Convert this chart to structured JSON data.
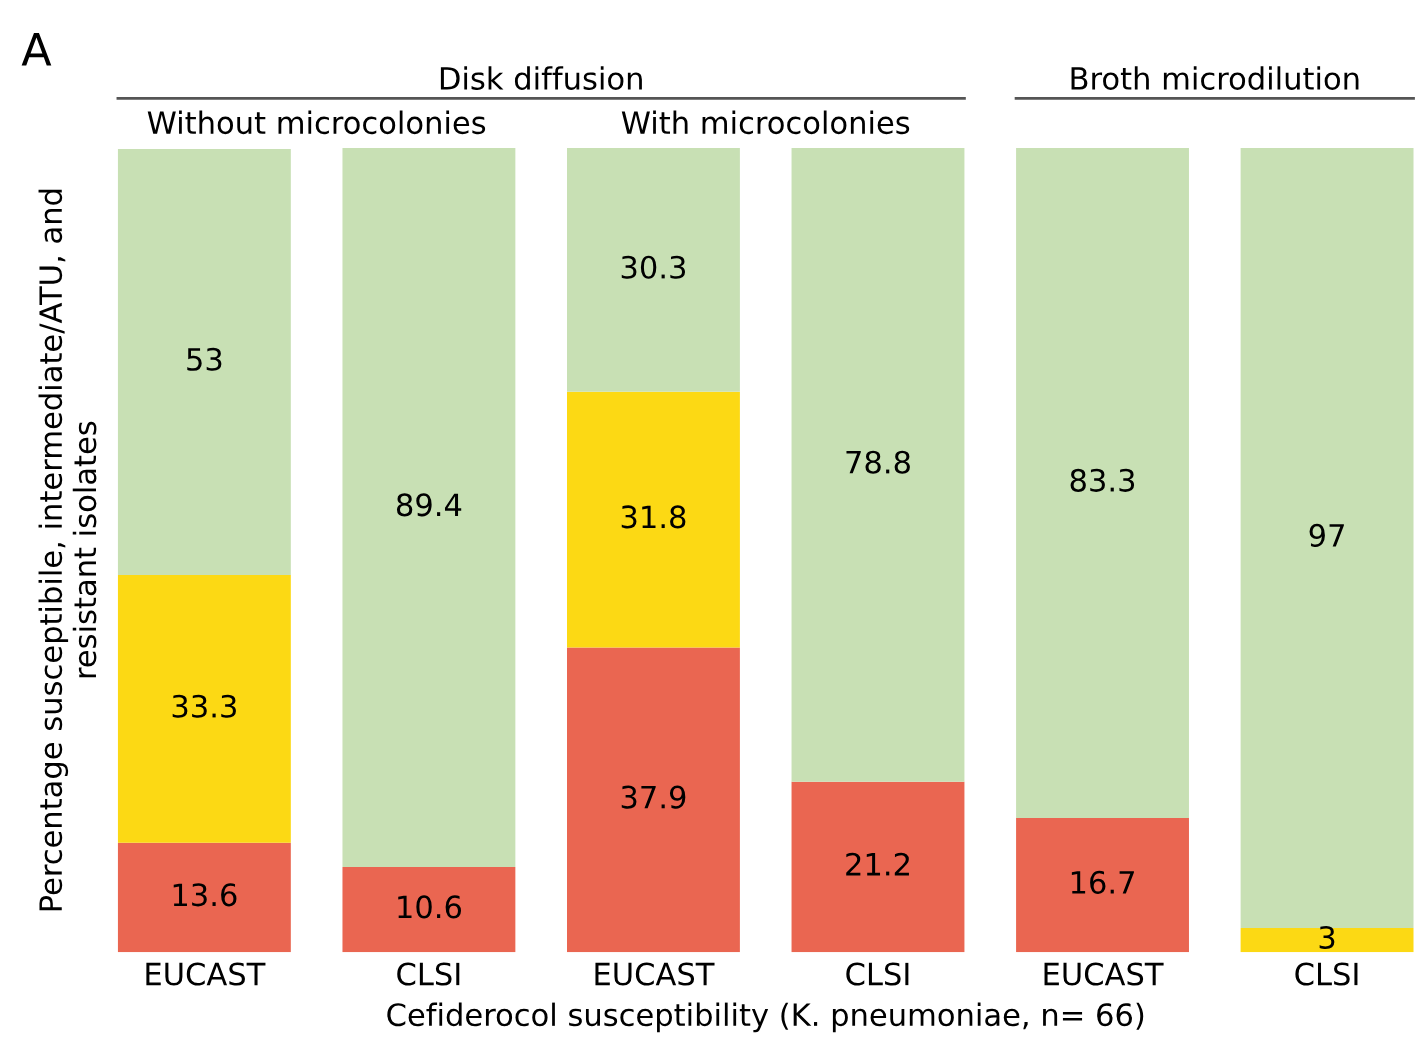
{
  "chart_data": {
    "type": "bar",
    "stacked": true,
    "title": "A",
    "categories": [
      "EUCAST",
      "CLSI",
      "EUCAST",
      "CLSI",
      "EUCAST",
      "CLSI"
    ],
    "series": [
      {
        "color": "#ea6651",
        "values": [
          13.6,
          10.6,
          37.9,
          21.2,
          16.7,
          null
        ],
        "value_labels": [
          "13.6",
          "10.6",
          "37.9",
          "21.2",
          "16.7",
          null
        ]
      },
      {
        "color": "#fcd914",
        "values": [
          33.3,
          null,
          31.8,
          null,
          null,
          3
        ],
        "value_labels": [
          "33.3",
          null,
          "31.8",
          null,
          null,
          "3"
        ]
      },
      {
        "color": "#c8e0b4",
        "values": [
          53,
          89.4,
          30.3,
          78.8,
          83.3,
          97
        ],
        "value_labels": [
          "53",
          "89.4",
          "30.3",
          "78.8",
          "83.3",
          "97"
        ]
      }
    ],
    "ylabel": "Percentage susceptibile, intermediate/ATU, and\nresistant isolates",
    "xlabel": "Cefiderocol susceptibility (K. pneumoniae, n= 66)",
    "annotations": [
      "Disk diffusion",
      "Without microcolonies",
      "With microcolonies",
      "Broth microdilution"
    ],
    "legend": false,
    "grid": false
  }
}
